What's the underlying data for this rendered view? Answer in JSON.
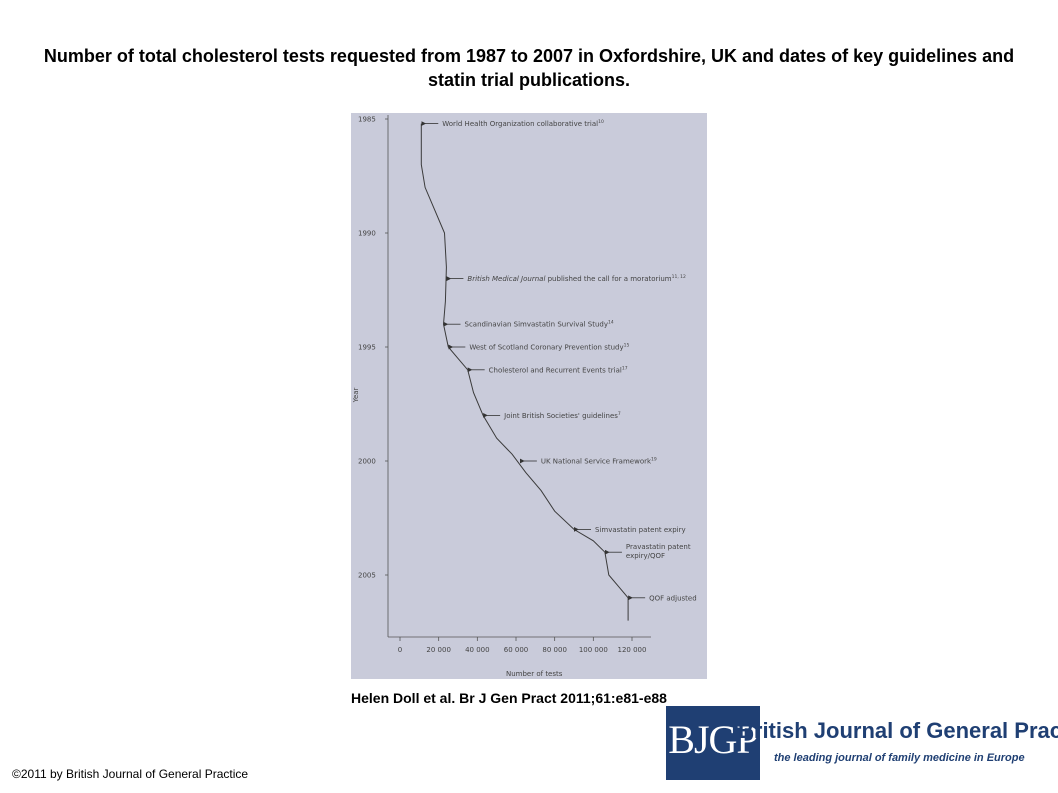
{
  "slide": {
    "title": "Number of total cholesterol tests requested from 1987 to 2007 in Oxfordshire, UK and dates of key guidelines and statin trial publications.",
    "citation": "Helen Doll et al. Br J Gen Pract 2011;61:e81-e88",
    "copyright": "©2011 by British Journal of General Practice"
  },
  "logo": {
    "mark": "BJGP",
    "name": "British Journal of General Practice",
    "tagline": "the leading journal of family medicine in Europe"
  },
  "colors": {
    "plot_background": "#c9cbda",
    "line": "#3a3a3a",
    "brand": "#1f3f73"
  },
  "chart_data": {
    "type": "line",
    "title": "",
    "xlabel": "Number of tests",
    "ylabel": "Year",
    "xlim": [
      0,
      120000
    ],
    "ylim": [
      1985,
      2007
    ],
    "y_inverted": true,
    "grid": false,
    "x_ticks": [
      0,
      20000,
      40000,
      60000,
      80000,
      100000,
      120000
    ],
    "x_tick_labels": [
      "0",
      "20 000",
      "40 000",
      "60 000",
      "80 000",
      "100 000",
      "120 000"
    ],
    "y_ticks": [
      1985,
      1990,
      1995,
      2000,
      2005
    ],
    "y_tick_labels": [
      "1985",
      "1990",
      "1995",
      "2000",
      "2005"
    ],
    "series": [
      {
        "points": [
          [
            11000,
            1985.2
          ],
          [
            11000,
            1987.0
          ],
          [
            13000,
            1988.0
          ],
          [
            18000,
            1989.0
          ],
          [
            23000,
            1990.0
          ],
          [
            24000,
            1991.5
          ],
          [
            23500,
            1993.0
          ],
          [
            22500,
            1994.0
          ],
          [
            25000,
            1995.0
          ],
          [
            30000,
            1995.5
          ],
          [
            35000,
            1996.0
          ],
          [
            38000,
            1997.0
          ],
          [
            43000,
            1998.0
          ],
          [
            50000,
            1999.0
          ],
          [
            58000,
            1999.7
          ],
          [
            65000,
            2000.5
          ],
          [
            73000,
            2001.3
          ],
          [
            80000,
            2002.2
          ],
          [
            90000,
            2003.0
          ],
          [
            100000,
            2003.5
          ],
          [
            106000,
            2004.0
          ],
          [
            108000,
            2005.0
          ],
          [
            113000,
            2005.5
          ],
          [
            118000,
            2006.0
          ],
          [
            118000,
            2007.0
          ]
        ]
      }
    ],
    "annotations": [
      {
        "text": "World Health Organization collaborative trial",
        "sup": "10",
        "year": 1985.2,
        "x": 11000
      },
      {
        "text": "British Medical Journal published the call for a moratorium",
        "sup": "11, 12",
        "year": 1992.0,
        "x": 24000,
        "italic_prefix": "British Medical Journal"
      },
      {
        "text": "Scandinavian Simvastatin Survival Study",
        "sup": "14",
        "year": 1994.0,
        "x": 22500
      },
      {
        "text": "West of Scotland Coronary Prevention study",
        "sup": "15",
        "year": 1995.0,
        "x": 25000
      },
      {
        "text": "Cholesterol and Recurrent Events trial",
        "sup": "17",
        "year": 1996.0,
        "x": 35000
      },
      {
        "text": "Joint British Societies' guidelines",
        "sup": "7",
        "year": 1998.0,
        "x": 43000
      },
      {
        "text": "UK National Service Framework",
        "sup": "19",
        "year": 2000.0,
        "x": 62000
      },
      {
        "text": "Simvastatin patent expiry",
        "sup": "",
        "year": 2003.0,
        "x": 90000
      },
      {
        "text": "Pravastatin patent",
        "line2": "expiry/QOF",
        "sup": "",
        "year": 2004.0,
        "x": 106000
      },
      {
        "text": "QOF adjusted",
        "sup": "",
        "year": 2006.0,
        "x": 118000
      }
    ]
  }
}
